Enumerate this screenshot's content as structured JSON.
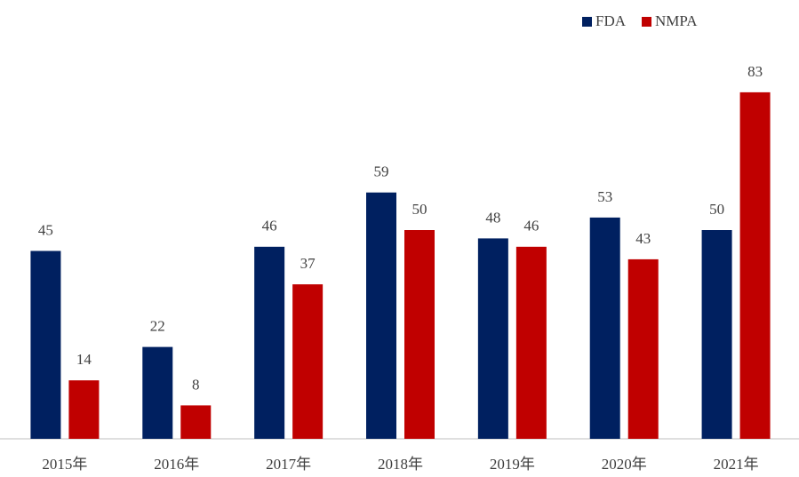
{
  "chart_data": {
    "type": "bar",
    "categories": [
      "2015年",
      "2016年",
      "2017年",
      "2018年",
      "2019年",
      "2020年",
      "2021年"
    ],
    "series": [
      {
        "name": "FDA",
        "color": "#002060",
        "values": [
          45,
          22,
          46,
          59,
          48,
          53,
          50
        ]
      },
      {
        "name": "NMPA",
        "color": "#c00000",
        "values": [
          14,
          8,
          37,
          50,
          46,
          43,
          83
        ]
      }
    ],
    "ylim": [
      0,
      90
    ],
    "legend": "top-right"
  }
}
